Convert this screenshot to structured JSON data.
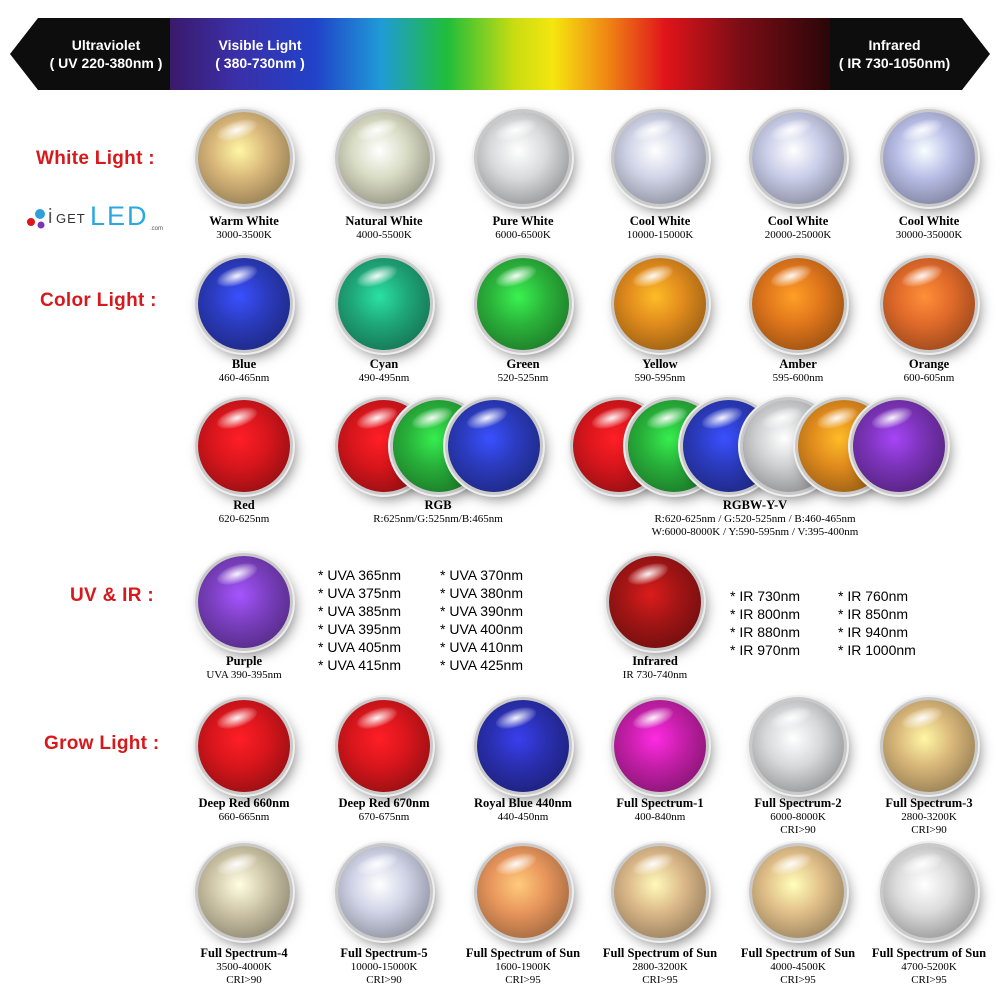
{
  "spectrum": {
    "uv_title": "Ultraviolet",
    "uv_range": "( UV 220-380nm )",
    "vis_title": "Visible Light",
    "vis_range": "( 380-730nm )",
    "ir_title": "Infrared",
    "ir_range": "( IR 730-1050nm)"
  },
  "sections": {
    "white": "White Light :",
    "color": "Color Light :",
    "uvir": "UV & IR :",
    "grow": "Grow Light :"
  },
  "logo": {
    "i": "i",
    "get": "GET",
    "led": "LED",
    "com": ".com"
  },
  "white": [
    {
      "name": "Warm White",
      "spec": "3000-3500K",
      "color": "#d9b77a"
    },
    {
      "name": "Natural White",
      "spec": "4000-5500K",
      "color": "#d8dbc3"
    },
    {
      "name": "Pure White",
      "spec": "6000-6500K",
      "color": "#d9dadc"
    },
    {
      "name": "Cool White",
      "spec": "10000-15000K",
      "color": "#cfd3e6"
    },
    {
      "name": "Cool White",
      "spec": "20000-25000K",
      "color": "#c9cde8"
    },
    {
      "name": "Cool White",
      "spec": "30000-35000K",
      "color": "#b8bde6"
    }
  ],
  "color": [
    {
      "name": "Blue",
      "spec": "460-465nm",
      "color": "#2b3bbd"
    },
    {
      "name": "Cyan",
      "spec": "490-495nm",
      "color": "#1fa779"
    },
    {
      "name": "Green",
      "spec": "520-525nm",
      "color": "#2bb33b"
    },
    {
      "name": "Yellow",
      "spec": "590-595nm",
      "color": "#e08b1d"
    },
    {
      "name": "Amber",
      "spec": "595-600nm",
      "color": "#e0761c"
    },
    {
      "name": "Orange",
      "spec": "600-605nm",
      "color": "#e06a2a"
    }
  ],
  "red": {
    "name": "Red",
    "spec": "620-625nm",
    "color": "#d8161c"
  },
  "rgb": {
    "name": "RGB",
    "spec": "R:625nm/G:525nm/B:465nm",
    "colors": [
      "#d8161c",
      "#28b03a",
      "#2b3bbd"
    ]
  },
  "rgbwyv": {
    "name": "RGBW-Y-V",
    "spec1": "R:620-625nm / G:520-525nm / B:460-465nm",
    "spec2": "W:6000-8000K / Y:590-595nm / V:395-400nm",
    "colors": [
      "#d8161c",
      "#28b03a",
      "#2b3bbd",
      "#cfd0d2",
      "#e08b1d",
      "#7b33b8"
    ]
  },
  "purple": {
    "name": "Purple",
    "spec": "UVA 390-395nm",
    "color": "#7b3fc0"
  },
  "uva_col1": [
    "* UVA 365nm",
    "* UVA 375nm",
    "* UVA 385nm",
    "* UVA 395nm",
    "* UVA 405nm",
    "* UVA 415nm"
  ],
  "uva_col2": [
    "* UVA 370nm",
    "* UVA 380nm",
    "* UVA 390nm",
    "* UVA 400nm",
    "* UVA 410nm",
    "* UVA 425nm"
  ],
  "infrared": {
    "name": "Infrared",
    "spec": "IR 730-740nm",
    "color": "#a31515"
  },
  "ir_col1": [
    "* IR 730nm",
    "* IR 800nm",
    "* IR 880nm",
    "* IR 970nm"
  ],
  "ir_col2": [
    "* IR 760nm",
    "* IR 850nm",
    "* IR 940nm",
    "* IR 1000nm"
  ],
  "grow1": [
    {
      "name": "Deep Red 660nm",
      "spec": "660-665nm",
      "spec2": "",
      "color": "#d8161c"
    },
    {
      "name": "Deep Red 670nm",
      "spec": "670-675nm",
      "spec2": "",
      "color": "#d8161c"
    },
    {
      "name": "Royal Blue 440nm",
      "spec": "440-450nm",
      "spec2": "",
      "color": "#2a2fb0"
    },
    {
      "name": "Full Spectrum-1",
      "spec": "400-840nm",
      "spec2": "",
      "color": "#c41fa8"
    },
    {
      "name": "Full Spectrum-2",
      "spec": "6000-8000K",
      "spec2": "CRI>90",
      "color": "#d6d8da"
    },
    {
      "name": "Full Spectrum-3",
      "spec": "2800-3200K",
      "spec2": "CRI>90",
      "color": "#d9b77a"
    }
  ],
  "grow2": [
    {
      "name": "Full Spectrum-4",
      "spec": "3500-4000K",
      "spec2": "CRI>90",
      "color": "#cfc6a8"
    },
    {
      "name": "Full Spectrum-5",
      "spec": "10000-15000K",
      "spec2": "CRI>90",
      "color": "#cfd3e6"
    },
    {
      "name": "Full Spectrum of Sun",
      "spec": "1600-1900K",
      "spec2": "CRI>95",
      "color": "#e8965c"
    },
    {
      "name": "Full Spectrum of Sun",
      "spec": "2800-3200K",
      "spec2": "CRI>95",
      "color": "#dcb98a"
    },
    {
      "name": "Full Spectrum of Sun",
      "spec": "4000-4500K",
      "spec2": "CRI>95",
      "color": "#e2c08a"
    },
    {
      "name": "Full Spectrum of Sun",
      "spec": "4700-5200K",
      "spec2": "CRI>95",
      "color": "#dcdcdc"
    }
  ]
}
